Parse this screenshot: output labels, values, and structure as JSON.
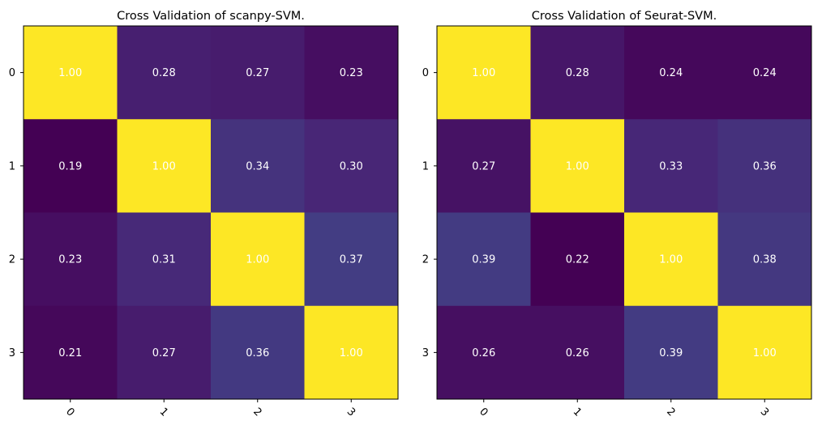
{
  "chart_data": [
    {
      "type": "heatmap",
      "title": "Cross Validation of scanpy-SVM.",
      "xlabel": "",
      "ylabel": "",
      "x_ticks": [
        "0",
        "1",
        "2",
        "3"
      ],
      "y_ticks": [
        "0",
        "1",
        "2",
        "3"
      ],
      "colormap": "viridis",
      "value_format": "2 decimals",
      "annotation_color": "#ffffff",
      "values": [
        [
          1.0,
          0.28,
          0.27,
          0.23
        ],
        [
          0.19,
          1.0,
          0.34,
          0.3
        ],
        [
          0.23,
          0.31,
          1.0,
          0.37
        ],
        [
          0.21,
          0.27,
          0.36,
          1.0
        ]
      ]
    },
    {
      "type": "heatmap",
      "title": "Cross Validation of Seurat-SVM.",
      "xlabel": "",
      "ylabel": "",
      "x_ticks": [
        "0",
        "1",
        "2",
        "3"
      ],
      "y_ticks": [
        "0",
        "1",
        "2",
        "3"
      ],
      "colormap": "viridis",
      "value_format": "2 decimals",
      "annotation_color": "#ffffff",
      "values": [
        [
          1.0,
          0.28,
          0.24,
          0.24
        ],
        [
          0.27,
          1.0,
          0.33,
          0.36
        ],
        [
          0.39,
          0.22,
          1.0,
          0.38
        ],
        [
          0.26,
          0.26,
          0.39,
          1.0
        ]
      ]
    }
  ]
}
